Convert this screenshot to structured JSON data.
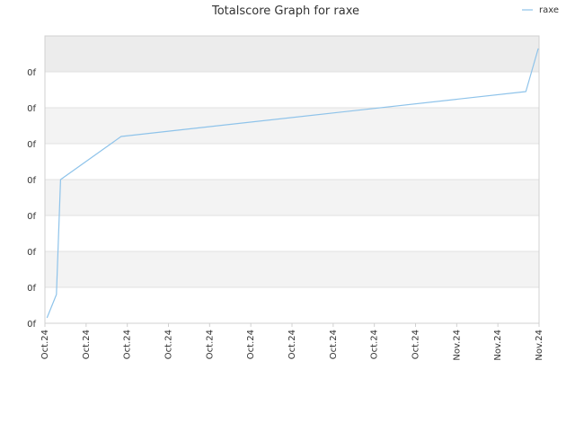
{
  "chart_data": {
    "type": "line",
    "title": "Totalscore Graph for raxe",
    "xlabel": "",
    "ylabel": "",
    "x_tick_labels": [
      "Oct.24",
      "Oct.24",
      "Oct.24",
      "Oct.24",
      "Oct.24",
      "Oct.24",
      "Oct.24",
      "Oct.24",
      "Oct.24",
      "Oct.24",
      "Nov.24",
      "Nov.24",
      "Nov.24"
    ],
    "y_tick_labels": [
      "0f",
      "0f",
      "0f",
      "0f",
      "0f",
      "0f",
      "0f",
      "0f"
    ],
    "ylim": [
      0,
      8
    ],
    "xlim": [
      0,
      12
    ],
    "grid": true,
    "legend_position": "top-right",
    "colors": {
      "series": "#8ec3ea",
      "band_alt": "#f3f3f3",
      "band_top": "#ececec",
      "gridline": "#e0e0e0",
      "axis": "#d0d0d0",
      "text": "#333333"
    },
    "series": [
      {
        "name": "raxe",
        "x": [
          0.05,
          0.28,
          0.38,
          1.85,
          11.68,
          11.98
        ],
        "y": [
          0.15,
          0.8,
          4.0,
          5.2,
          6.45,
          7.65
        ]
      }
    ]
  }
}
